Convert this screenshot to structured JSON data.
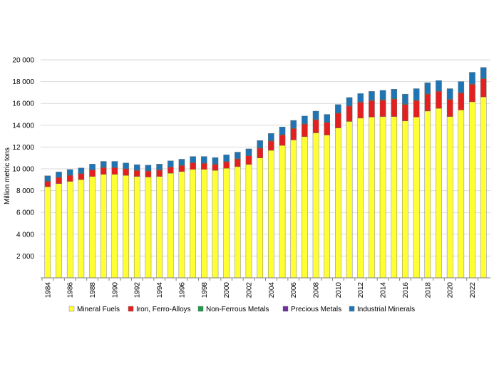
{
  "chart_data": {
    "type": "bar",
    "stacked": true,
    "title": "",
    "xlabel": "",
    "ylabel": "Million metric tons",
    "ylim": [
      0,
      20000
    ],
    "yticks": [
      2000,
      4000,
      6000,
      8000,
      10000,
      12000,
      14000,
      16000,
      18000,
      20000
    ],
    "ytick_labels": [
      "2 000",
      "4 000",
      "6 000",
      "8 000",
      "10 000",
      "12 000",
      "14 000",
      "16 000",
      "18 000",
      "20 000"
    ],
    "categories": [
      "1984",
      "1985",
      "1986",
      "1987",
      "1988",
      "1989",
      "1990",
      "1991",
      "1992",
      "1993",
      "1994",
      "1995",
      "1996",
      "1997",
      "1998",
      "1999",
      "2000",
      "2001",
      "2002",
      "2003",
      "2004",
      "2005",
      "2006",
      "2007",
      "2008",
      "2009",
      "2010",
      "2011",
      "2012",
      "2013",
      "2014",
      "2015",
      "2016",
      "2017",
      "2018",
      "2019",
      "2020",
      "2021",
      "2022",
      "2023"
    ],
    "xtick_labels": [
      "1984",
      "",
      "1986",
      "",
      "1988",
      "",
      "1990",
      "",
      "1992",
      "",
      "1994",
      "",
      "1996",
      "",
      "1998",
      "",
      "2000",
      "",
      "2002",
      "",
      "2004",
      "",
      "2006",
      "",
      "2008",
      "",
      "2010",
      "",
      "2012",
      "",
      "2014",
      "",
      "2016",
      "",
      "2018",
      "",
      "2020",
      "",
      "2022",
      ""
    ],
    "grid": "horizontal",
    "legend_position": "bottom",
    "series": [
      {
        "name": "Mineral Fuels",
        "color": "#ffff33",
        "values": [
          8350,
          8650,
          8850,
          9000,
          9300,
          9500,
          9500,
          9400,
          9300,
          9250,
          9300,
          9600,
          9750,
          9950,
          9950,
          9850,
          10050,
          10200,
          10400,
          11000,
          11700,
          12150,
          12650,
          12950,
          13300,
          13100,
          13750,
          14350,
          14650,
          14750,
          14800,
          14800,
          14400,
          14750,
          15300,
          15550,
          14800,
          15400,
          16150,
          16600
        ]
      },
      {
        "name": "Iron, Ferro-Alloys",
        "color": "#e2201f",
        "values": [
          500,
          550,
          550,
          550,
          600,
          600,
          600,
          600,
          550,
          550,
          600,
          550,
          550,
          600,
          550,
          550,
          600,
          700,
          800,
          900,
          850,
          950,
          1050,
          1150,
          1200,
          1150,
          1350,
          1400,
          1450,
          1500,
          1500,
          1600,
          1500,
          1500,
          1550,
          1550,
          1550,
          1550,
          1600,
          1650
        ]
      },
      {
        "name": "Non-Ferrous Metals",
        "color": "#1f9a4a",
        "values": [
          30,
          30,
          30,
          30,
          30,
          30,
          30,
          30,
          30,
          30,
          30,
          30,
          30,
          30,
          30,
          30,
          30,
          30,
          30,
          40,
          40,
          40,
          40,
          40,
          40,
          40,
          40,
          40,
          50,
          50,
          50,
          50,
          50,
          50,
          50,
          50,
          50,
          50,
          50,
          50
        ]
      },
      {
        "name": "Precious Metals",
        "color": "#7030a0",
        "values": [
          5,
          5,
          5,
          5,
          5,
          5,
          5,
          5,
          5,
          5,
          5,
          5,
          5,
          5,
          5,
          5,
          5,
          5,
          5,
          5,
          5,
          5,
          5,
          5,
          5,
          5,
          5,
          5,
          5,
          5,
          5,
          5,
          5,
          5,
          5,
          5,
          5,
          5,
          5,
          5
        ]
      },
      {
        "name": "Industrial Minerals",
        "color": "#1f75b4",
        "values": [
          480,
          480,
          500,
          500,
          500,
          550,
          550,
          500,
          500,
          500,
          500,
          550,
          550,
          550,
          600,
          600,
          600,
          600,
          600,
          650,
          650,
          700,
          700,
          700,
          750,
          700,
          750,
          750,
          750,
          800,
          850,
          850,
          900,
          1050,
          1000,
          950,
          950,
          1000,
          1050,
          1000
        ]
      }
    ]
  }
}
